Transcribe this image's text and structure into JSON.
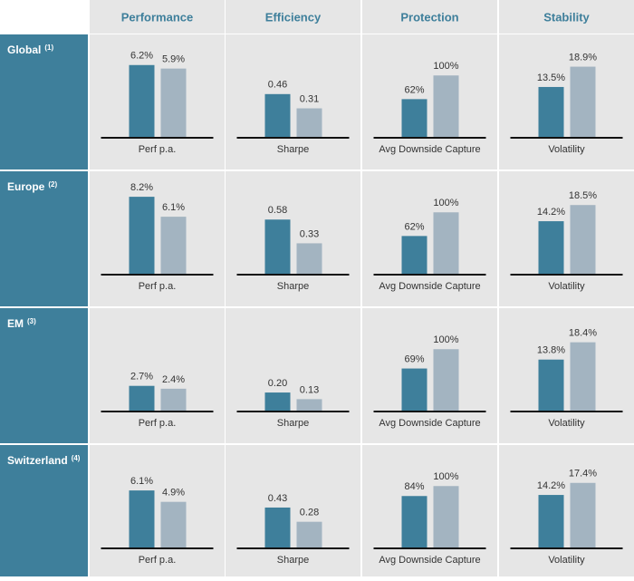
{
  "columns": [
    "Performance",
    "Efficiency",
    "Protection",
    "Stability"
  ],
  "colors": [
    "#3e7f9b",
    "#a3b4c1"
  ],
  "rows": [
    {
      "name": "Global",
      "note": "(1)",
      "cells": [
        {
          "type": "bar",
          "label": "Perf p.a.",
          "values": [
            6.2,
            5.9
          ],
          "value_labels": [
            "6.2%",
            "5.9%"
          ],
          "ylim": [
            0,
            8.5
          ]
        },
        {
          "type": "bar",
          "label": "Sharpe",
          "values": [
            0.46,
            0.31
          ],
          "value_labels": [
            "0.46",
            "0.31"
          ],
          "ylim": [
            0,
            1.05
          ]
        },
        {
          "type": "bar",
          "label": "Avg Downside Capture",
          "values": [
            62,
            100
          ],
          "value_labels": [
            "62%",
            "100%"
          ],
          "ylim": [
            0,
            160
          ]
        },
        {
          "type": "bar",
          "label": "Volatility",
          "values": [
            13.5,
            18.9
          ],
          "value_labels": [
            "13.5%",
            "18.9%"
          ],
          "ylim": [
            0,
            26.5
          ]
        }
      ]
    },
    {
      "name": "Europe",
      "note": "(2)",
      "cells": [
        {
          "type": "bar",
          "label": "Perf p.a.",
          "values": [
            8.2,
            6.1
          ],
          "value_labels": [
            "8.2%",
            "6.1%"
          ],
          "ylim": [
            0,
            10.5
          ]
        },
        {
          "type": "bar",
          "label": "Sharpe",
          "values": [
            0.58,
            0.33
          ],
          "value_labels": [
            "0.58",
            "0.33"
          ],
          "ylim": [
            0,
            1.05
          ]
        },
        {
          "type": "bar",
          "label": "Avg Downside Capture",
          "values": [
            62,
            100
          ],
          "value_labels": [
            "62%",
            "100%"
          ],
          "ylim": [
            0,
            160
          ]
        },
        {
          "type": "bar",
          "label": "Volatility",
          "values": [
            14.2,
            18.5
          ],
          "value_labels": [
            "14.2%",
            "18.5%"
          ],
          "ylim": [
            0,
            26.5
          ]
        }
      ]
    },
    {
      "name": "EM",
      "note": "(3)",
      "cells": [
        {
          "type": "bar",
          "label": "Perf p.a.",
          "values": [
            2.7,
            2.4
          ],
          "value_labels": [
            "2.7%",
            "2.4%"
          ],
          "ylim": [
            0,
            10.5
          ]
        },
        {
          "type": "bar",
          "label": "Sharpe",
          "values": [
            0.2,
            0.13
          ],
          "value_labels": [
            "0.20",
            "0.13"
          ],
          "ylim": [
            0,
            1.05
          ]
        },
        {
          "type": "bar",
          "label": "Avg Downside Capture",
          "values": [
            69,
            100
          ],
          "value_labels": [
            "69%",
            "100%"
          ],
          "ylim": [
            0,
            160
          ]
        },
        {
          "type": "bar",
          "label": "Volatility",
          "values": [
            13.8,
            18.4
          ],
          "value_labels": [
            "13.8%",
            "18.4%"
          ],
          "ylim": [
            0,
            26.5
          ]
        }
      ]
    },
    {
      "name": "Switzerland",
      "note": "(4)",
      "cells": [
        {
          "type": "bar",
          "label": "Perf p.a.",
          "values": [
            6.1,
            4.9
          ],
          "value_labels": [
            "6.1%",
            "4.9%"
          ],
          "ylim": [
            0,
            10.5
          ]
        },
        {
          "type": "bar",
          "label": "Sharpe",
          "values": [
            0.43,
            0.28
          ],
          "value_labels": [
            "0.43",
            "0.28"
          ],
          "ylim": [
            0,
            1.05
          ]
        },
        {
          "type": "bar",
          "label": "Avg Downside Capture",
          "values": [
            84,
            100
          ],
          "value_labels": [
            "84%",
            "100%"
          ],
          "ylim": [
            0,
            160
          ]
        },
        {
          "type": "bar",
          "label": "Volatility",
          "values": [
            14.2,
            17.4
          ],
          "value_labels": [
            "14.2%",
            "17.4%"
          ],
          "ylim": [
            0,
            26.5
          ]
        }
      ]
    }
  ]
}
